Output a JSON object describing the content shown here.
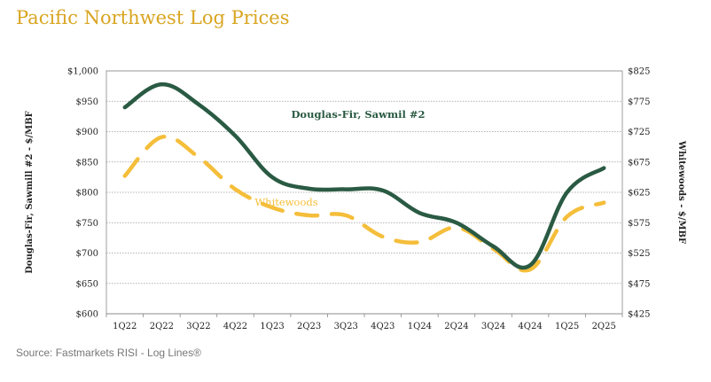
{
  "page_title": "Pacific Northwest Log Prices",
  "source_note": "Source: Fastmarkets RISI - Log Lines®",
  "colors": {
    "title": "#D9A521",
    "douglas_fir": "#2A5A43",
    "whitewoods": "#F5BE3A",
    "grid": "#9A9A9A",
    "source": "#777777"
  },
  "chart_data": {
    "type": "line",
    "title": "Pacific Northwest Log Prices",
    "categories": [
      "1Q22",
      "2Q22",
      "3Q22",
      "4Q22",
      "1Q23",
      "2Q23",
      "3Q23",
      "4Q23",
      "1Q24",
      "2Q24",
      "3Q24",
      "4Q24",
      "1Q25",
      "2Q25"
    ],
    "left_axis": {
      "label": "Douglas-Fir, Sawmill #2 - $/MBF",
      "range": [
        600,
        1000
      ],
      "ticks": [
        600,
        650,
        700,
        750,
        800,
        850,
        900,
        950,
        1000
      ],
      "tick_labels": [
        "$600",
        "$650",
        "$700",
        "$750",
        "$800",
        "$850",
        "$900",
        "$950",
        "$1,000"
      ]
    },
    "right_axis": {
      "label": "Whitewoods - $/MBF",
      "range": [
        425,
        825
      ],
      "ticks": [
        425,
        475,
        525,
        575,
        625,
        675,
        725,
        775,
        825
      ],
      "tick_labels": [
        "$425",
        "$475",
        "$525",
        "$575",
        "$625",
        "$675",
        "$725",
        "$775",
        "$825"
      ]
    },
    "series": [
      {
        "name": "Douglas-Fir, Sawmil #2",
        "axis": "left",
        "style": "solid",
        "values": [
          940,
          978,
          945,
          893,
          825,
          806,
          805,
          803,
          766,
          750,
          711,
          680,
          800,
          840
        ]
      },
      {
        "name": "Whitewoods",
        "axis": "right",
        "style": "dashed",
        "values": [
          652,
          716,
          683,
          630,
          600,
          587,
          587,
          552,
          543,
          567,
          532,
          498,
          585,
          608
        ]
      }
    ],
    "annotations": [
      {
        "series": "Douglas-Fir, Sawmil #2",
        "text": "Douglas-Fir, Sawmil #2"
      },
      {
        "series": "Whitewoods",
        "text": "Whitewoods"
      }
    ],
    "grid": true
  }
}
